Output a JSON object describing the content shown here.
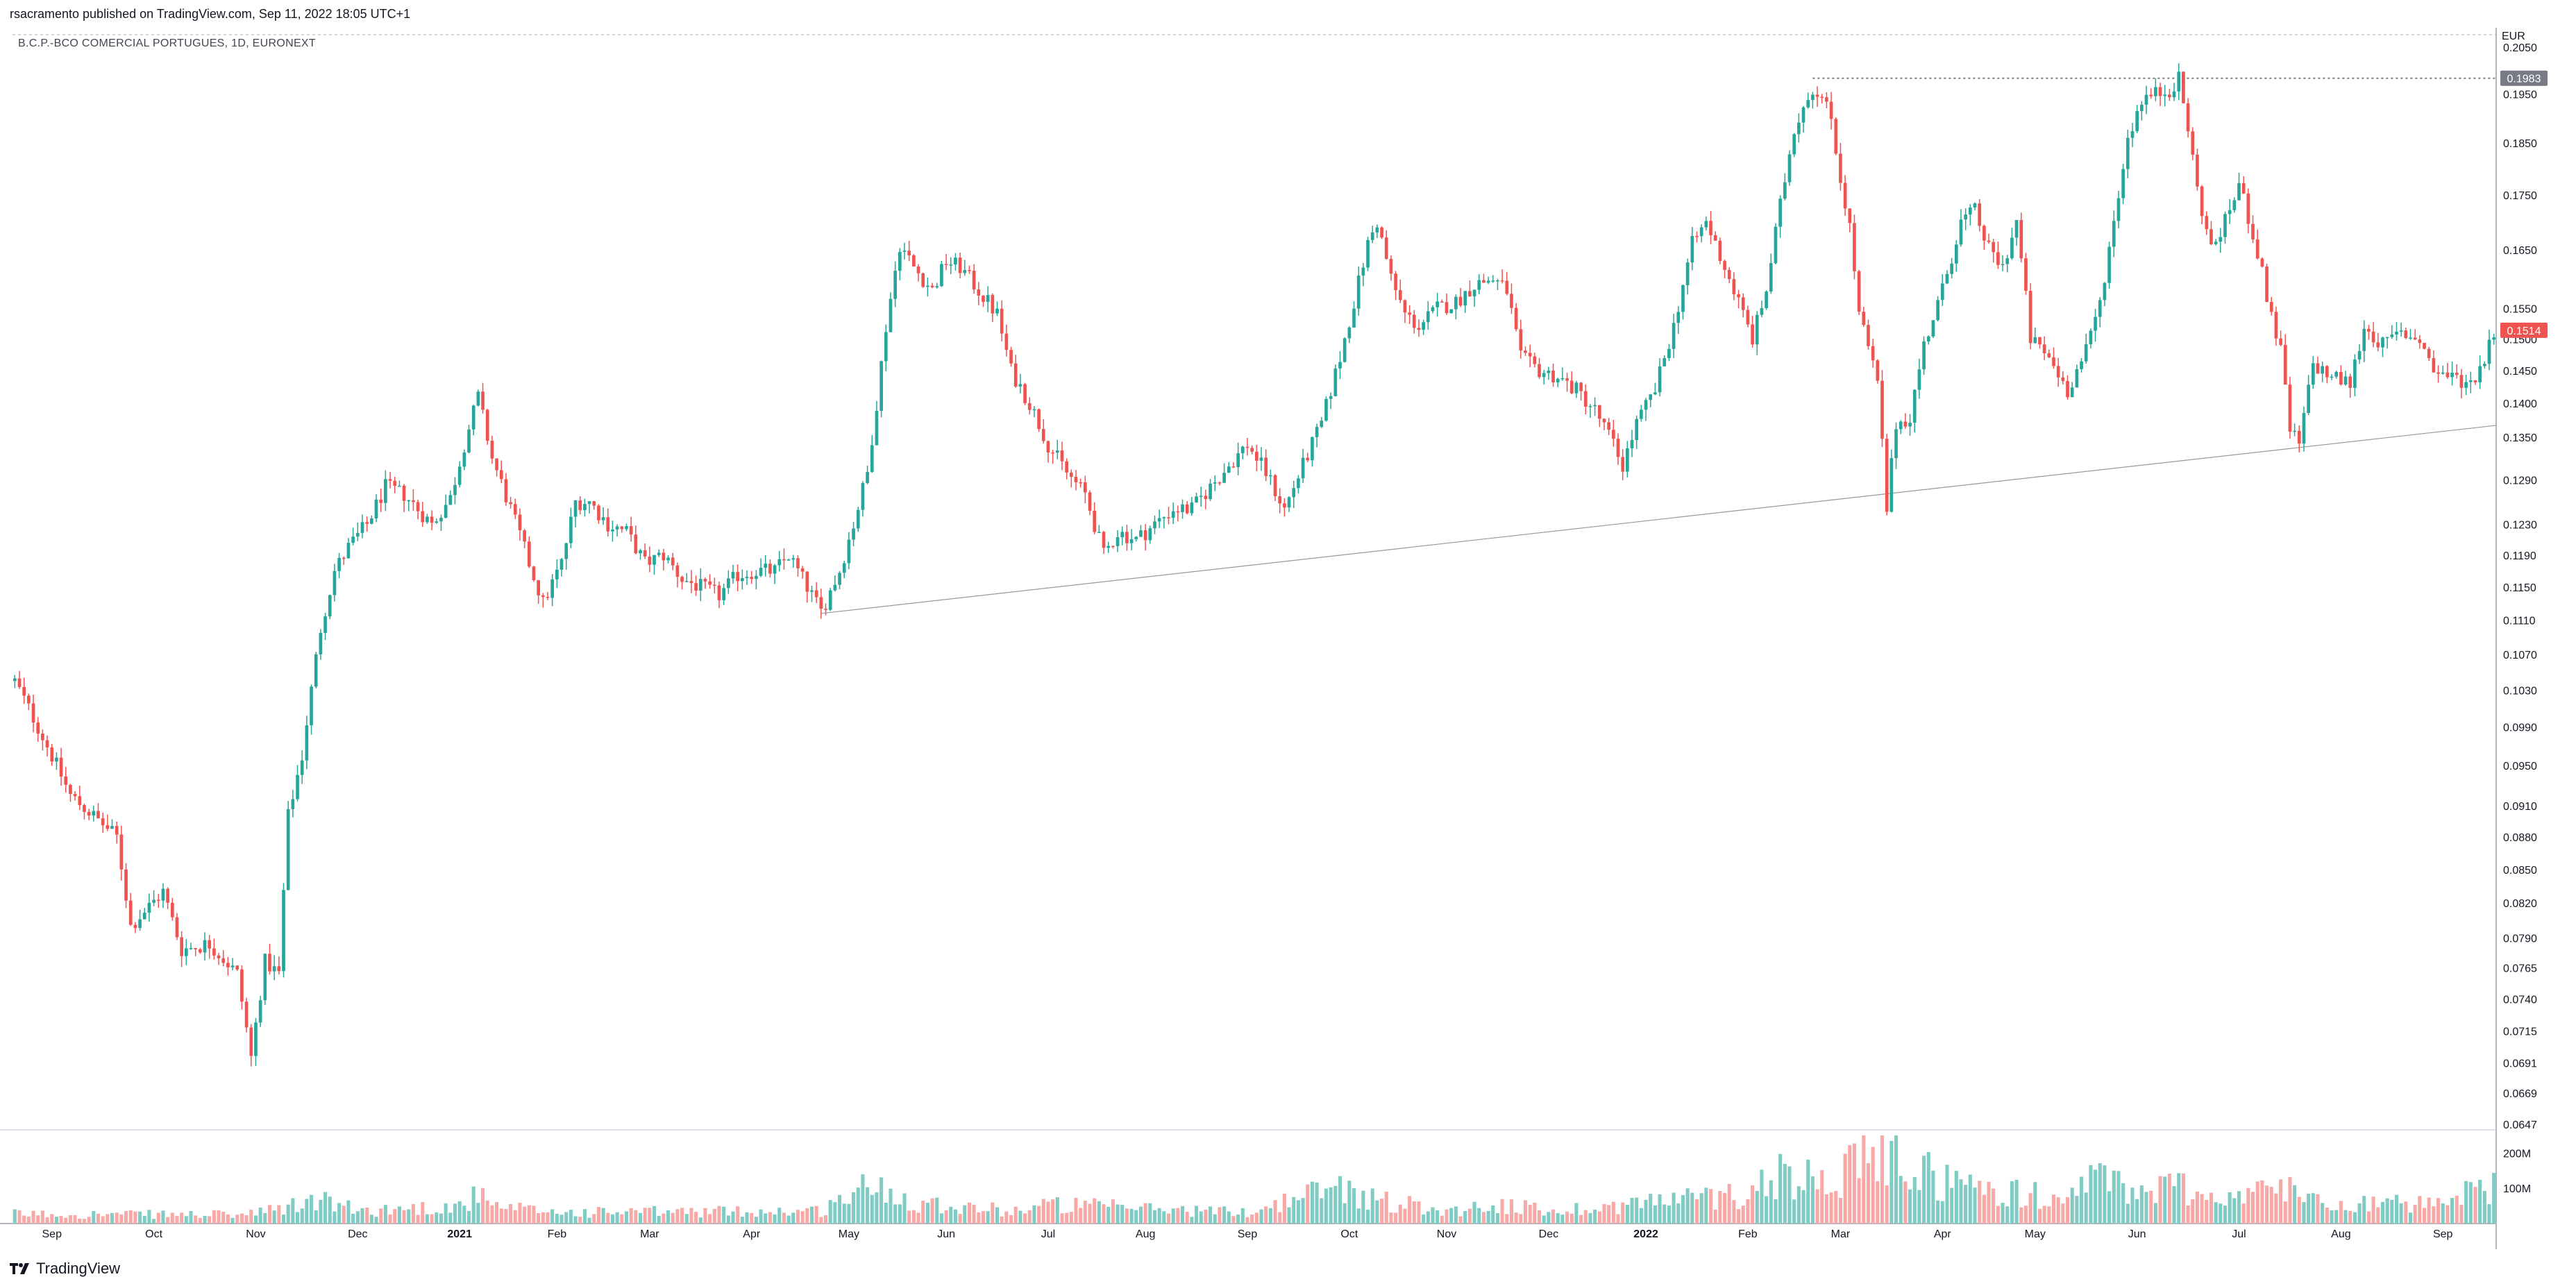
{
  "header": {
    "publisher_line": "rsacramento published on TradingView.com, Sep 11, 2022 18:05 UTC+1",
    "symbol_line": "B.C.P.-BCO COMERCIAL PORTUGUES, 1D, EURONEXT"
  },
  "footer": {
    "brand": "TradingView"
  },
  "colors": {
    "up": "#26a69a",
    "down": "#ef5350",
    "up_volume": "#80cbc4",
    "down_volume": "#f7a9a7",
    "grid": "#d1d4dc"
  },
  "chart_data": {
    "type": "candlestick",
    "currency": "EUR",
    "price_scale": "log",
    "ylim": [
      0.0647,
      0.205
    ],
    "y_ticks": [
      "0.2050",
      "0.1950",
      "0.1850",
      "0.1750",
      "0.1650",
      "0.1550",
      "0.1500",
      "0.1450",
      "0.1400",
      "0.1350",
      "0.1290",
      "0.1230",
      "0.1190",
      "0.1150",
      "0.1110",
      "0.1070",
      "0.1030",
      "0.0990",
      "0.0950",
      "0.0910",
      "0.0880",
      "0.0850",
      "0.0820",
      "0.0790",
      "0.0765",
      "0.0740",
      "0.0715",
      "0.0691",
      "0.0669",
      "0.0647"
    ],
    "x_ticks": [
      "Sep",
      "Oct",
      "Nov",
      "Dec",
      "2021",
      "Feb",
      "Mar",
      "Apr",
      "May",
      "Jun",
      "Jul",
      "Aug",
      "Sep",
      "Oct",
      "Nov",
      "Dec",
      "2022",
      "Feb",
      "Mar",
      "Apr",
      "May",
      "Jun",
      "Jul",
      "Aug",
      "Sep"
    ],
    "x_tick_bars": [
      8,
      30,
      52,
      74,
      96,
      117,
      137,
      159,
      180,
      201,
      223,
      244,
      266,
      288,
      309,
      331,
      352,
      374,
      394,
      416,
      436,
      458,
      480,
      502,
      524
    ],
    "last_price_label": "0.1514",
    "resistance_label": "0.1983",
    "volume_ticks": [
      "200M",
      "100M"
    ],
    "volume_max": 250,
    "resistance_line": {
      "price": 0.1983,
      "from_bar": 388
    },
    "support_trendline": {
      "p1": {
        "bar": 174,
        "price": 0.1118
      },
      "p2": {
        "bar": 492,
        "price": 0.1335
      }
    },
    "price_path": [
      [
        0,
        0.104
      ],
      [
        12,
        0.092
      ],
      [
        22,
        0.088
      ],
      [
        25,
        0.08
      ],
      [
        32,
        0.083
      ],
      [
        36,
        0.078
      ],
      [
        42,
        0.0785
      ],
      [
        48,
        0.076
      ],
      [
        51,
        0.0695
      ],
      [
        54,
        0.077
      ],
      [
        57,
        0.076
      ],
      [
        59,
        0.09
      ],
      [
        62,
        0.096
      ],
      [
        64,
        0.103
      ],
      [
        66,
        0.11
      ],
      [
        69,
        0.117
      ],
      [
        72,
        0.12
      ],
      [
        76,
        0.123
      ],
      [
        80,
        0.128
      ],
      [
        84,
        0.127
      ],
      [
        87,
        0.125
      ],
      [
        90,
        0.123
      ],
      [
        94,
        0.1265
      ],
      [
        97,
        0.134
      ],
      [
        100,
        0.141
      ],
      [
        103,
        0.132
      ],
      [
        107,
        0.125
      ],
      [
        111,
        0.118
      ],
      [
        114,
        0.113
      ],
      [
        118,
        0.118
      ],
      [
        121,
        0.126
      ],
      [
        124,
        0.126
      ],
      [
        128,
        0.123
      ],
      [
        132,
        0.122
      ],
      [
        136,
        0.118
      ],
      [
        140,
        0.119
      ],
      [
        144,
        0.116
      ],
      [
        148,
        0.115
      ],
      [
        152,
        0.114
      ],
      [
        156,
        0.1165
      ],
      [
        160,
        0.117
      ],
      [
        164,
        0.117
      ],
      [
        167,
        0.119
      ],
      [
        170,
        0.116
      ],
      [
        174,
        0.112
      ],
      [
        178,
        0.117
      ],
      [
        181,
        0.123
      ],
      [
        184,
        0.13
      ],
      [
        186,
        0.14
      ],
      [
        188,
        0.152
      ],
      [
        191,
        0.166
      ],
      [
        194,
        0.162
      ],
      [
        198,
        0.158
      ],
      [
        201,
        0.163
      ],
      [
        204,
        0.162
      ],
      [
        208,
        0.158
      ],
      [
        212,
        0.154
      ],
      [
        215,
        0.145
      ],
      [
        219,
        0.14
      ],
      [
        223,
        0.134
      ],
      [
        227,
        0.13
      ],
      [
        231,
        0.127
      ],
      [
        235,
        0.119
      ],
      [
        238,
        0.122
      ],
      [
        242,
        0.121
      ],
      [
        246,
        0.123
      ],
      [
        250,
        0.125
      ],
      [
        254,
        0.125
      ],
      [
        258,
        0.128
      ],
      [
        262,
        0.131
      ],
      [
        266,
        0.134
      ],
      [
        270,
        0.13
      ],
      [
        274,
        0.125
      ],
      [
        278,
        0.131
      ],
      [
        282,
        0.137
      ],
      [
        286,
        0.147
      ],
      [
        289,
        0.156
      ],
      [
        292,
        0.166
      ],
      [
        294,
        0.17
      ],
      [
        297,
        0.16
      ],
      [
        300,
        0.154
      ],
      [
        303,
        0.152
      ],
      [
        307,
        0.155
      ],
      [
        311,
        0.156
      ],
      [
        315,
        0.159
      ],
      [
        319,
        0.16
      ],
      [
        322,
        0.158
      ],
      [
        325,
        0.147
      ],
      [
        329,
        0.145
      ],
      [
        333,
        0.144
      ],
      [
        337,
        0.142
      ],
      [
        341,
        0.139
      ],
      [
        345,
        0.134
      ],
      [
        347,
        0.131
      ],
      [
        350,
        0.137
      ],
      [
        354,
        0.142
      ],
      [
        358,
        0.152
      ],
      [
        362,
        0.166
      ],
      [
        365,
        0.17
      ],
      [
        368,
        0.164
      ],
      [
        372,
        0.156
      ],
      [
        375,
        0.15
      ],
      [
        378,
        0.158
      ],
      [
        381,
        0.173
      ],
      [
        384,
        0.188
      ],
      [
        387,
        0.195
      ],
      [
        389,
        0.196
      ],
      [
        392,
        0.19
      ],
      [
        394,
        0.178
      ],
      [
        396,
        0.169
      ],
      [
        398,
        0.154
      ],
      [
        402,
        0.143
      ],
      [
        404,
        0.125
      ],
      [
        406,
        0.137
      ],
      [
        409,
        0.138
      ],
      [
        412,
        0.149
      ],
      [
        416,
        0.158
      ],
      [
        420,
        0.17
      ],
      [
        423,
        0.172
      ],
      [
        426,
        0.165
      ],
      [
        429,
        0.162
      ],
      [
        432,
        0.17
      ],
      [
        435,
        0.15
      ],
      [
        439,
        0.147
      ],
      [
        443,
        0.142
      ],
      [
        447,
        0.148
      ],
      [
        450,
        0.156
      ],
      [
        453,
        0.17
      ],
      [
        456,
        0.186
      ],
      [
        459,
        0.194
      ],
      [
        462,
        0.195
      ],
      [
        465,
        0.196
      ],
      [
        467,
        0.198
      ],
      [
        469,
        0.188
      ],
      [
        471,
        0.176
      ],
      [
        474,
        0.165
      ],
      [
        477,
        0.17
      ],
      [
        480,
        0.177
      ],
      [
        483,
        0.168
      ],
      [
        486,
        0.157
      ],
      [
        489,
        0.148
      ],
      [
        491,
        0.136
      ],
      [
        493,
        0.134
      ],
      [
        496,
        0.146
      ],
      [
        500,
        0.144
      ],
      [
        504,
        0.143
      ],
      [
        507,
        0.152
      ],
      [
        511,
        0.149
      ],
      [
        515,
        0.151
      ],
      [
        519,
        0.15
      ],
      [
        522,
        0.145
      ],
      [
        526,
        0.144
      ],
      [
        530,
        0.143
      ],
      [
        533,
        0.147
      ],
      [
        535,
        0.1514
      ]
    ],
    "volume_path": [
      [
        0,
        30
      ],
      [
        50,
        28
      ],
      [
        57,
        45
      ],
      [
        66,
        75
      ],
      [
        74,
        40
      ],
      [
        96,
        55
      ],
      [
        100,
        90
      ],
      [
        103,
        50
      ],
      [
        120,
        35
      ],
      [
        174,
        40
      ],
      [
        181,
        100
      ],
      [
        186,
        120
      ],
      [
        194,
        70
      ],
      [
        215,
        40
      ],
      [
        223,
        60
      ],
      [
        266,
        35
      ],
      [
        286,
        120
      ],
      [
        292,
        80
      ],
      [
        310,
        40
      ],
      [
        320,
        60
      ],
      [
        331,
        40
      ],
      [
        345,
        55
      ],
      [
        352,
        70
      ],
      [
        372,
        90
      ],
      [
        381,
        160
      ],
      [
        386,
        120
      ],
      [
        389,
        200
      ],
      [
        394,
        150
      ],
      [
        404,
        230
      ],
      [
        408,
        180
      ],
      [
        420,
        120
      ],
      [
        430,
        100
      ],
      [
        440,
        80
      ],
      [
        450,
        140
      ],
      [
        459,
        100
      ],
      [
        467,
        120
      ],
      [
        475,
        80
      ],
      [
        490,
        110
      ],
      [
        500,
        70
      ],
      [
        515,
        60
      ],
      [
        525,
        55
      ],
      [
        533,
        130
      ],
      [
        535,
        110
      ]
    ]
  }
}
